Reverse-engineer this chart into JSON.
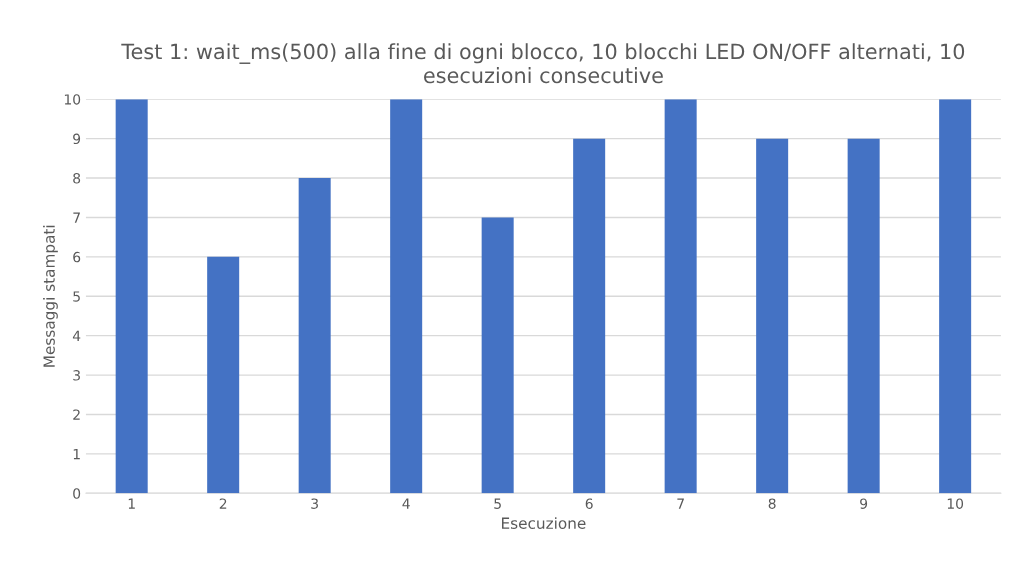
{
  "chart_data": {
    "type": "bar",
    "title": "Test 1: wait_ms(500) alla fine di ogni blocco, 10 blocchi LED ON/OFF alternati, 10 esecuzioni consecutive",
    "xlabel": "Esecuzione",
    "ylabel": "Messaggi stampati",
    "categories": [
      "1",
      "2",
      "3",
      "4",
      "5",
      "6",
      "7",
      "8",
      "9",
      "10"
    ],
    "values": [
      10,
      6,
      8,
      10,
      7,
      9,
      10,
      9,
      9,
      10
    ],
    "color": "#4472c4",
    "ylim": [
      0,
      10
    ],
    "yticks": [
      0,
      1,
      2,
      3,
      4,
      5,
      6,
      7,
      8,
      9,
      10
    ],
    "grid": "y"
  }
}
